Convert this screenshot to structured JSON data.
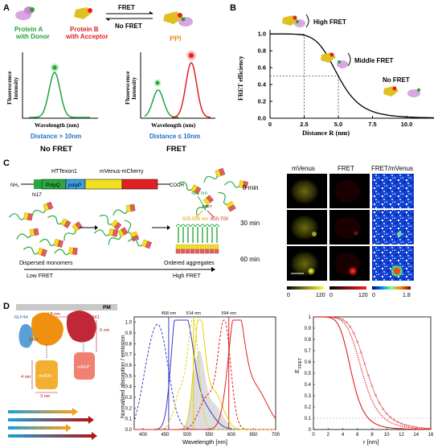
{
  "panel_a": {
    "letter": "A",
    "protein_a_line1": "Protein A",
    "protein_a_line2": "with Donor",
    "protein_b_line1": "Protein B",
    "protein_b_line2": "with Acceptor",
    "fret_arrow": "FRET",
    "no_fret_arrow": "No FRET",
    "ppi": "PPI",
    "y_label_1": "Fluorescence",
    "y_label_2": "Intensity",
    "x_label": "Wavelength (nm)",
    "distance_left": "Distance > 10nm",
    "distance_right": "Distance ≤ 10nm",
    "caption_left": "No FRET",
    "caption_right": "FRET",
    "colors": {
      "donor": "#22a33a",
      "acceptor": "#e02020",
      "ppi": "#f28a1e",
      "distance": "#1f6fc4"
    }
  },
  "panel_b": {
    "letter": "B",
    "y_label": "FRET efficiency",
    "x_label": "Distance R (nm)",
    "y_ticks": [
      "0.0",
      "0.2",
      "0.4",
      "0.6",
      "0.8",
      "1.0"
    ],
    "x_ticks": [
      "0",
      "2.5",
      "5.0",
      "7.5",
      "10.0"
    ],
    "high_label": "High FRET",
    "middle_label": "Middle FRET",
    "no_label": "No FRET",
    "chart_data": {
      "type": "line",
      "r0": 5.0,
      "xlim": [
        0,
        12
      ],
      "ylim": [
        0,
        1.05
      ],
      "reference_lines": [
        {
          "x": 2.5,
          "y": 1.0
        },
        {
          "x": 5.0,
          "y": 0.5
        }
      ]
    }
  },
  "panel_c": {
    "letter": "C",
    "construct_top_left": "HTTexon1",
    "construct_top_right": "mVenus-mCherry",
    "polyq": "PolyQ",
    "polyp": "polyP",
    "nh2": "NH₂",
    "cooh": "COOH",
    "n17": "N17",
    "wl_488": "488 nm",
    "wl_505": "505-555 nm",
    "wl_600": "600-700",
    "fret_small": "FRET",
    "dispersed": "Dispersed monomers",
    "low_fret": "Low FRET",
    "ordered": "Ordered aggregates",
    "high_fret": "High FRET",
    "col_headers": [
      "mVenus",
      "FRET",
      "FRET/mVenus"
    ],
    "row_labels": [
      "0 min",
      "30 min",
      "60 min"
    ],
    "scale_ticks": [
      {
        "lo": "0",
        "hi": "120"
      },
      {
        "lo": "0",
        "hi": "120"
      },
      {
        "lo": "0",
        "hi": "1.8"
      }
    ]
  },
  "panel_d": {
    "letter": "D",
    "pm": "PM",
    "dist_48": "4.8 nm",
    "dist_6": "6 nm",
    "dist_4": "4 nm",
    "dist_3": "3 nm",
    "rlp44": "RLP44",
    "bak1": "BAK1",
    "bri1": "BRI1",
    "bri1_short": "BRI1",
    "mvenus": "mVEN",
    "mrfp": "mRFP",
    "mcherry": "mCHERRY",
    "spectra": {
      "y_label": "Normalized absorption / emission",
      "x_label": "Wavelength [nm]",
      "peak_labels": [
        "458 nm",
        "514 nm",
        "594 nm"
      ],
      "x_ticks": [
        "400",
        "450",
        "500",
        "550",
        "600",
        "650",
        "700"
      ],
      "y_ticks": [
        "0.0",
        "0.1",
        "0.2",
        "0.3",
        "0.4",
        "0.5",
        "0.6",
        "0.7",
        "0.8",
        "0.9",
        "1.0"
      ],
      "chart_data": {
        "type": "line",
        "xlim": [
          380,
          700
        ],
        "ylim": [
          0,
          1.05
        ],
        "excitation_lines_nm": [
          458,
          514,
          594
        ]
      }
    },
    "efret": {
      "y_label": "E",
      "y_sub": "FRET",
      "x_label": "r [nm]",
      "x_ticks": [
        "0",
        "2",
        "4",
        "6",
        "8",
        "10",
        "12",
        "14",
        "16"
      ],
      "y_ticks": [
        "0",
        "0.1",
        "0.2",
        "0.3",
        "0.4",
        "0.5",
        "0.6",
        "0.7",
        "0.8",
        "0.9",
        "1"
      ],
      "chart_data": {
        "type": "line",
        "xlim": [
          0,
          16
        ],
        "ylim": [
          0,
          1
        ],
        "series_r0": [
          5.2,
          6.7,
          7.4
        ]
      }
    }
  }
}
